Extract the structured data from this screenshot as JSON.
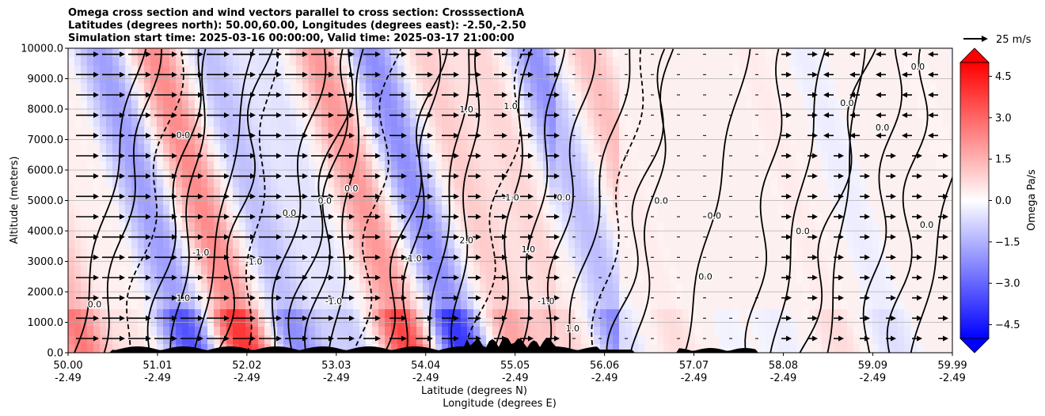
{
  "title_lines": [
    "Omega cross section and wind vectors parallel to cross section: CrosssectionA",
    "Latitudes (degrees north): 50.00,60.00, Longitudes (degrees east): -2.50,-2.50",
    "Simulation start time: 2025-03-16 00:00:00, Valid time: 2025-03-17 21:00:00"
  ],
  "chart_data": {
    "type": "heatmap",
    "description_fields": "Filled omega contours with black contour lines, wind vectors and terrain",
    "ylabel": "Altitude (meters)",
    "xlabel_1": "Latitude (degrees N)",
    "xlabel_2": "Longitude (degrees E)",
    "ylim": [
      0,
      10000
    ],
    "yticks": [
      "0.0",
      "1000.0",
      "2000.0",
      "3000.0",
      "4000.0",
      "5000.0",
      "6000.0",
      "7000.0",
      "8000.0",
      "9000.0",
      "10000.0"
    ],
    "ytick_values": [
      0,
      1000,
      2000,
      3000,
      4000,
      5000,
      6000,
      7000,
      8000,
      9000,
      10000
    ],
    "xlim": [
      50.0,
      59.99
    ],
    "xticks_lat": [
      "50.00",
      "51.01",
      "52.02",
      "53.03",
      "54.04",
      "55.05",
      "56.06",
      "57.07",
      "58.08",
      "59.09",
      "59.99"
    ],
    "xtick_values": [
      50.0,
      51.01,
      52.02,
      53.03,
      54.04,
      55.05,
      56.06,
      57.07,
      58.08,
      59.09,
      59.99
    ],
    "xticks_lon": [
      "-2.49",
      "-2.49",
      "-2.49",
      "-2.49",
      "-2.49",
      "-2.49",
      "-2.49",
      "-2.49",
      "-2.49",
      "-2.49",
      "-2.49"
    ],
    "grid": "horizontal",
    "colorbar": {
      "label": "Omega Pa/s",
      "range": [
        -5.0,
        5.0
      ],
      "ticks": [
        "4.5",
        "3.0",
        "1.5",
        "0.0",
        "−1.5",
        "−3.0",
        "−4.5"
      ],
      "tick_values": [
        4.5,
        3.0,
        1.5,
        0.0,
        -1.5,
        -3.0,
        -4.5
      ],
      "low_color": "#0000ff",
      "high_color": "#ff0000",
      "mid_color": "#ffffff",
      "extend": "both"
    },
    "vector_key": "25 m/s",
    "contour_labels": [
      {
        "text": "0.0",
        "x": 51.3,
        "y": 7050
      },
      {
        "text": "0.0",
        "x": 53.2,
        "y": 5300
      },
      {
        "text": "0.0",
        "x": 52.5,
        "y": 4500
      },
      {
        "text": "0.0",
        "x": 52.9,
        "y": 4900
      },
      {
        "text": "1.0",
        "x": 54.5,
        "y": 7900
      },
      {
        "text": "1.0",
        "x": 55.0,
        "y": 8000
      },
      {
        "text": "-1.0",
        "x": 55.0,
        "y": 5000
      },
      {
        "text": "0.0",
        "x": 55.6,
        "y": 5000
      },
      {
        "text": "0.0",
        "x": 56.7,
        "y": 4900
      },
      {
        "text": "0.0",
        "x": 57.3,
        "y": 4400
      },
      {
        "text": "0.0",
        "x": 57.2,
        "y": 2400
      },
      {
        "text": "0.0",
        "x": 50.3,
        "y": 1500
      },
      {
        "text": "1.0",
        "x": 51.3,
        "y": 1700
      },
      {
        "text": "-1.0",
        "x": 51.5,
        "y": 3200
      },
      {
        "text": "-1.0",
        "x": 52.1,
        "y": 2900
      },
      {
        "text": "2.0",
        "x": 54.5,
        "y": 3600
      },
      {
        "text": "-1.0",
        "x": 53.0,
        "y": 1600
      },
      {
        "text": "1.0",
        "x": 55.2,
        "y": 3300
      },
      {
        "text": "0.0",
        "x": 58.3,
        "y": 3900
      },
      {
        "text": "0.0",
        "x": 59.7,
        "y": 4100
      },
      {
        "text": "0.0",
        "x": 59.2,
        "y": 7300
      },
      {
        "text": "0.0",
        "x": 58.8,
        "y": 8100
      },
      {
        "text": "0.0",
        "x": 59.6,
        "y": 9300
      },
      {
        "text": "-1.0",
        "x": 55.4,
        "y": 1600
      },
      {
        "text": "1.0",
        "x": 55.7,
        "y": 700
      },
      {
        "text": "-1.0",
        "x": 53.9,
        "y": 3000
      }
    ]
  }
}
